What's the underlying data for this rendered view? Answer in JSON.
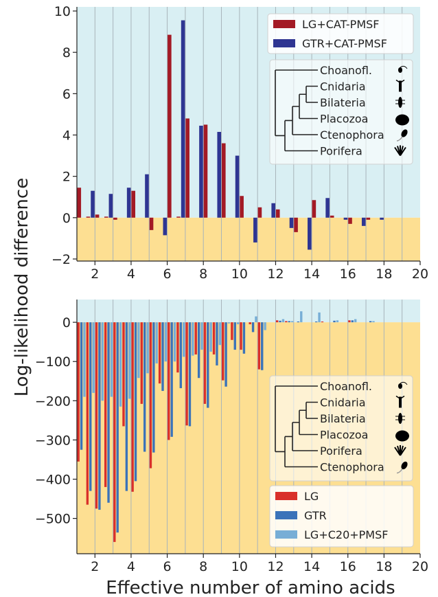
{
  "figure": {
    "ylabel": "Log-likelihood difference",
    "xlabel": "Effective number of amino acids"
  },
  "colors": {
    "bg_positive": "#d9eff3",
    "bg_negative": "#fddf92",
    "grid": "#a8b4ba",
    "lg_cat": "#a31a25",
    "gtr_cat": "#2e3592",
    "lg": "#d9302a",
    "gtr": "#3b73b9",
    "lg_c20": "#77aed6",
    "tree_line": "#222222",
    "legend_bg": "#ffffff"
  },
  "chart_data": [
    {
      "type": "bar",
      "panel": "top",
      "x_bins": [
        1.25,
        1.75,
        2.25,
        2.75,
        3.25,
        3.75,
        4.25,
        4.75,
        5.25,
        5.75,
        6.25,
        6.75,
        7.25,
        7.75,
        8.25,
        8.75,
        9.25,
        9.75,
        10.25,
        10.75,
        11.25,
        11.75,
        12.25,
        12.75,
        13.25,
        13.75,
        14.25,
        14.75,
        15.25,
        15.75,
        16.25,
        16.75,
        17.25,
        17.75
      ],
      "series": [
        {
          "name": "LG+CAT-PMSF",
          "color_key": "lg_cat",
          "values": [
            1.45,
            0.05,
            0.15,
            0.05,
            -0.1,
            0,
            1.3,
            0,
            -0.6,
            0,
            8.85,
            0.05,
            4.8,
            0,
            4.5,
            0,
            3.6,
            0,
            1.05,
            0,
            0.5,
            0,
            0.4,
            0,
            -0.7,
            0,
            0.85,
            0,
            0.1,
            0,
            -0.3,
            0,
            -0.1,
            0
          ]
        },
        {
          "name": "GTR+CAT-PMSF",
          "color_key": "gtr_cat",
          "values": [
            0,
            1.3,
            0,
            1.15,
            0,
            1.45,
            0,
            2.1,
            0,
            -0.85,
            0,
            9.55,
            0,
            4.45,
            0,
            4.15,
            0,
            3.0,
            0,
            -1.2,
            0,
            0.7,
            0,
            -0.5,
            0,
            -1.55,
            0,
            0.95,
            0,
            -0.1,
            0,
            -0.4,
            0,
            -0.1
          ]
        }
      ],
      "xlim": [
        1,
        20
      ],
      "ylim": [
        -2.1,
        10.2
      ],
      "xticks": [
        "2",
        "4",
        "6",
        "8",
        "10",
        "12",
        "14",
        "16",
        "18",
        "20"
      ],
      "yticks": [
        "−2",
        "0",
        "2",
        "4",
        "6",
        "8",
        "10"
      ],
      "ytick_values": [
        -2,
        0,
        2,
        4,
        6,
        8,
        10
      ],
      "legend": {
        "placement": "top-right",
        "entries": [
          "LG+CAT-PMSF",
          "GTR+CAT-PMSF"
        ]
      },
      "tree_taxa": [
        "Choanofl.",
        "Cnidaria",
        "Bilateria",
        "Placozoa",
        "Ctenophora",
        "Porifera"
      ]
    },
    {
      "type": "bar",
      "panel": "bottom",
      "x_bins": [
        1.25,
        1.75,
        2.25,
        2.75,
        3.25,
        3.75,
        4.25,
        4.75,
        5.25,
        5.75,
        6.25,
        6.75,
        7.25,
        7.75,
        8.25,
        8.75,
        9.25,
        9.75,
        10.25,
        10.75,
        11.25,
        11.75,
        12.25,
        12.75,
        13.25,
        13.75,
        14.25,
        14.75,
        15.25,
        15.75,
        16.25,
        16.75,
        17.25,
        17.75
      ],
      "series": [
        {
          "name": "LG",
          "color_key": "lg",
          "values": [
            -355,
            -465,
            -475,
            -420,
            -560,
            -265,
            -432,
            -208,
            -372,
            -156,
            -300,
            -128,
            -263,
            -82,
            -208,
            -82,
            -148,
            -45,
            -70,
            -5,
            -120,
            0,
            5,
            3,
            0,
            0,
            0,
            2,
            0,
            0,
            5,
            0,
            0,
            0
          ]
        },
        {
          "name": "GTR",
          "color_key": "gtr",
          "values": [
            -325,
            -430,
            -478,
            -460,
            -536,
            -430,
            -405,
            -330,
            -332,
            -175,
            -292,
            -168,
            -265,
            -142,
            -218,
            -110,
            -164,
            -70,
            -80,
            -25,
            -122,
            0,
            4,
            3,
            2,
            0,
            2,
            0,
            4,
            0,
            5,
            0,
            3,
            0
          ]
        },
        {
          "name": "LG+C20+PMSF",
          "color_key": "lg_c20",
          "values": [
            -190,
            -180,
            -200,
            -190,
            -215,
            -195,
            -142,
            -130,
            -105,
            -100,
            -100,
            -88,
            -85,
            -70,
            -75,
            -58,
            -3,
            -5,
            0,
            15,
            -20,
            0,
            8,
            3,
            28,
            0,
            25,
            0,
            5,
            0,
            8,
            0,
            3,
            0
          ]
        }
      ],
      "xlim": [
        1,
        20
      ],
      "ylim": [
        -590,
        58
      ],
      "xticks": [
        "2",
        "4",
        "6",
        "8",
        "10",
        "12",
        "14",
        "16",
        "18",
        "20"
      ],
      "yticks": [
        "−500",
        "−400",
        "−300",
        "−200",
        "−100",
        "0"
      ],
      "ytick_values": [
        -500,
        -400,
        -300,
        -200,
        -100,
        0
      ],
      "legend": {
        "placement": "bottom-right",
        "entries": [
          "LG",
          "GTR",
          "LG+C20+PMSF"
        ]
      },
      "tree_taxa": [
        "Choanofl.",
        "Cnidaria",
        "Bilateria",
        "Placozoa",
        "Porifera",
        "Ctenophora"
      ]
    }
  ]
}
